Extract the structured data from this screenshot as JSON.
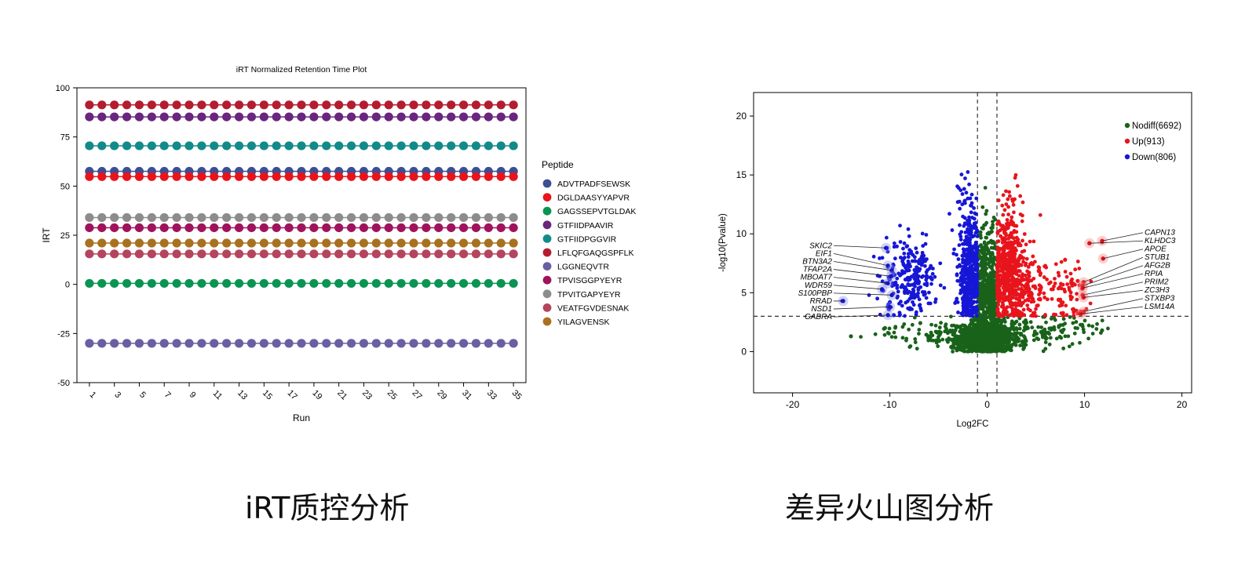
{
  "captions": {
    "left": "iRT质控分析",
    "right": "差异火山图分析"
  },
  "chart_data": [
    {
      "type": "scatter",
      "title": "iRT Normalized Retention Time Plot",
      "xlabel": "Run",
      "ylabel": "IRT",
      "xlim": [
        0,
        36
      ],
      "ylim": [
        -50,
        100
      ],
      "yticks": [
        100,
        75,
        50,
        25,
        0,
        -25,
        -50
      ],
      "xticks": [
        1,
        3,
        5,
        7,
        9,
        11,
        13,
        15,
        17,
        19,
        21,
        23,
        25,
        27,
        29,
        31,
        33,
        35
      ],
      "runs": [
        1,
        2,
        3,
        4,
        5,
        6,
        7,
        8,
        9,
        10,
        11,
        12,
        13,
        14,
        15,
        16,
        17,
        18,
        19,
        20,
        21,
        22,
        23,
        24,
        25,
        26,
        27,
        28,
        29,
        30,
        31,
        32,
        33,
        34,
        35
      ],
      "legend_title": "Peptide",
      "legend_position": "right",
      "grid": false,
      "series": [
        {
          "name": "ADVTPADFSEWSK",
          "value": 57.5,
          "color": "#3c4e94"
        },
        {
          "name": "DGLDAASYYAPVR",
          "value": 54.8,
          "color": "#e8141c"
        },
        {
          "name": "GAGSSEPVTGLDAK",
          "value": 0.5,
          "color": "#0a9453"
        },
        {
          "name": "GTFIIDPAAVIR",
          "value": 85.2,
          "color": "#6a257f"
        },
        {
          "name": "GTFIIDPGGVIR",
          "value": 70.5,
          "color": "#128a8a"
        },
        {
          "name": "LFLQFGAQGSPFLK",
          "value": 91.3,
          "color": "#b41c2f"
        },
        {
          "name": "LGGNEQVTR",
          "value": -30.0,
          "color": "#6a5fa3"
        },
        {
          "name": "TPVISGGPYEYR",
          "value": 28.8,
          "color": "#a0135c"
        },
        {
          "name": "TPVITGAPYEYR",
          "value": 34.0,
          "color": "#8c8c8c"
        },
        {
          "name": "VEATFGVDESNAK",
          "value": 15.5,
          "color": "#b5445e"
        },
        {
          "name": "YILAGVENSK",
          "value": 21.0,
          "color": "#a8711f"
        }
      ]
    },
    {
      "type": "scatter",
      "title": "",
      "xlabel": "Log2FC",
      "ylabel": "-log10(Pvalue)",
      "xlim": [
        -24,
        21
      ],
      "ylim": [
        -3.5,
        22
      ],
      "xticks": [
        -20,
        -10,
        0,
        10,
        20
      ],
      "yticks": [
        0,
        5,
        10,
        15,
        20
      ],
      "threshold_lines": {
        "x": [
          -1,
          1
        ],
        "y": 3
      },
      "legend_position": "top-right",
      "series": [
        {
          "name": "Nodiff(6692)",
          "color": "#19621a",
          "clusters": [
            {
              "cx": -0.2,
              "cy": 1.0,
              "sx": 1.4,
              "sy": 0.7,
              "n": 900
            },
            {
              "cx": -0.5,
              "cy": 4.5,
              "sx": 0.3,
              "sy": 2.6,
              "n": 300
            },
            {
              "cx": 0.5,
              "cy": 4.5,
              "sx": 0.3,
              "sy": 2.6,
              "n": 300
            },
            {
              "cx": -0.1,
              "cy": 9.5,
              "sx": 0.25,
              "sy": 2.0,
              "n": 40
            },
            {
              "cx": 4.0,
              "cy": 1.6,
              "sx": 3.0,
              "sy": 0.7,
              "n": 170
            },
            {
              "cx": -4.0,
              "cy": 1.4,
              "sx": 3.0,
              "sy": 0.6,
              "n": 130
            },
            {
              "cx": 10.8,
              "cy": 2.1,
              "sx": 1.0,
              "sy": 0.5,
              "n": 12
            },
            {
              "cx": -10.0,
              "cy": 1.8,
              "sx": 1.2,
              "sy": 0.5,
              "n": 6
            }
          ],
          "points": [
            [
              -14.0,
              1.3
            ],
            [
              -10.5,
              2.0
            ],
            [
              11.8,
              1.8
            ]
          ]
        },
        {
          "name": "Up(913)",
          "color": "#e8141c",
          "clusters": [
            {
              "cx": 2.2,
              "cy": 6.8,
              "sx": 0.9,
              "sy": 2.2,
              "n": 520
            },
            {
              "cx": 4.5,
              "cy": 5.0,
              "sx": 1.3,
              "sy": 1.3,
              "n": 120
            },
            {
              "cx": 2.5,
              "cy": 12.0,
              "sx": 0.7,
              "sy": 1.4,
              "n": 30
            },
            {
              "cx": 8.2,
              "cy": 5.0,
              "sx": 1.1,
              "sy": 1.3,
              "n": 60
            }
          ],
          "points": [
            [
              10.5,
              9.2
            ],
            [
              11.8,
              9.3
            ],
            [
              11.9,
              7.9
            ],
            [
              9.9,
              5.9
            ],
            [
              9.8,
              5.6
            ],
            [
              9.8,
              4.8
            ],
            [
              9.9,
              3.3
            ],
            [
              9.6,
              3.4
            ],
            [
              9.3,
              6.0
            ],
            [
              8.0,
              7.8
            ]
          ]
        },
        {
          "name": "Down(806)",
          "color": "#1616d6",
          "clusters": [
            {
              "cx": -1.8,
              "cy": 6.5,
              "sx": 0.6,
              "sy": 2.3,
              "n": 470
            },
            {
              "cx": -7.8,
              "cy": 6.2,
              "sx": 1.3,
              "sy": 1.5,
              "n": 230
            },
            {
              "cx": -2.5,
              "cy": 13.0,
              "sx": 0.5,
              "sy": 1.6,
              "n": 25
            }
          ],
          "points": [
            [
              -10.3,
              8.8
            ],
            [
              -10.2,
              7.2
            ],
            [
              -9.8,
              6.4
            ],
            [
              -9.7,
              5.8
            ],
            [
              -10.8,
              5.2
            ],
            [
              -10.0,
              4.2
            ],
            [
              -10.2,
              3.8
            ],
            [
              -14.9,
              4.3
            ],
            [
              -9.6,
              3.1
            ],
            [
              -10.1,
              3.6
            ]
          ]
        }
      ],
      "labels": [
        {
          "text": "SKIC2",
          "x": -10.4,
          "y": 8.8,
          "side": "left"
        },
        {
          "text": "EIF1",
          "x": -10.2,
          "y": 7.3,
          "side": "left"
        },
        {
          "text": "BTN3A2",
          "x": -9.8,
          "y": 6.9,
          "side": "left"
        },
        {
          "text": "TFAP2A",
          "x": -9.9,
          "y": 6.4,
          "side": "left"
        },
        {
          "text": "MBOAT7",
          "x": -10.2,
          "y": 5.8,
          "side": "left"
        },
        {
          "text": "WDR59",
          "x": -10.8,
          "y": 5.3,
          "side": "left"
        },
        {
          "text": "S100PBP",
          "x": -9.8,
          "y": 4.8,
          "side": "left"
        },
        {
          "text": "RRAD",
          "x": -14.8,
          "y": 4.3,
          "side": "left"
        },
        {
          "text": "NSD1",
          "x": -10.0,
          "y": 3.8,
          "side": "left"
        },
        {
          "text": "GABRA",
          "x": -10.2,
          "y": 3.1,
          "side": "left"
        },
        {
          "text": "CAPN13",
          "x": 11.8,
          "y": 9.4,
          "side": "right"
        },
        {
          "text": "KLHDC3",
          "x": 10.5,
          "y": 9.2,
          "side": "right"
        },
        {
          "text": "APOE",
          "x": 11.9,
          "y": 7.9,
          "side": "right"
        },
        {
          "text": "STUB1",
          "x": 9.9,
          "y": 5.9,
          "side": "right"
        },
        {
          "text": "AFG2B",
          "x": 9.8,
          "y": 5.6,
          "side": "right"
        },
        {
          "text": "RPIA",
          "x": 9.8,
          "y": 5.4,
          "side": "right"
        },
        {
          "text": "PRIM2",
          "x": 9.8,
          "y": 4.8,
          "side": "right"
        },
        {
          "text": "ZC3H3",
          "x": 9.9,
          "y": 4.6,
          "side": "right"
        },
        {
          "text": "STXBP3",
          "x": 9.9,
          "y": 3.4,
          "side": "right"
        },
        {
          "text": "LSM14A",
          "x": 9.6,
          "y": 3.2,
          "side": "right"
        }
      ]
    }
  ]
}
